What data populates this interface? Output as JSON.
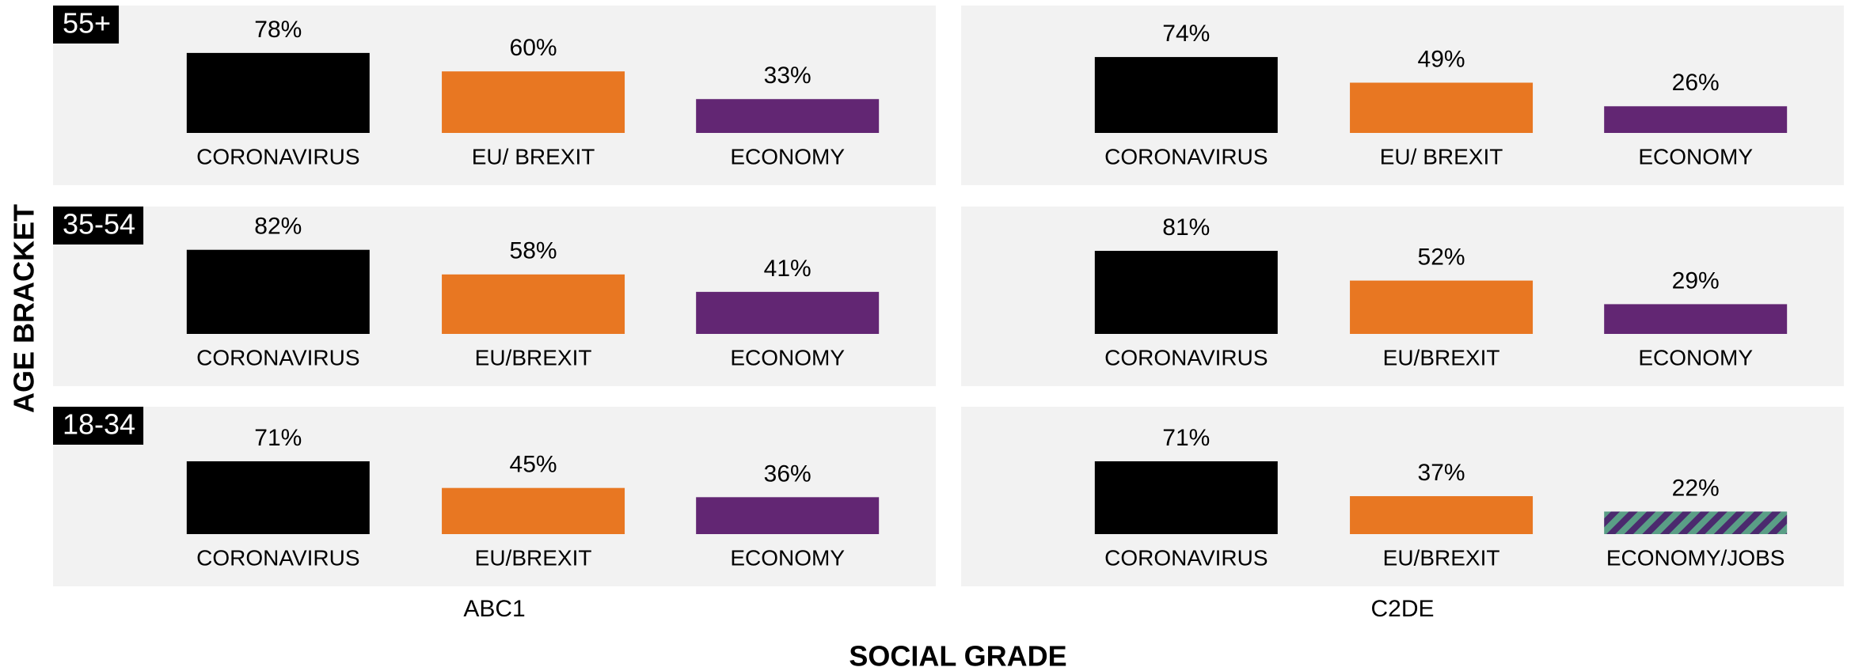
{
  "grid": {
    "x_label": "SOCIAL GRADE",
    "y_label": "AGE BRACKET",
    "columns": [
      "ABC1",
      "C2DE"
    ],
    "rows": [
      "55+",
      "35-54",
      "18-34"
    ]
  },
  "chart_data": [
    {
      "type": "bar",
      "row": 0,
      "column": 0,
      "categories": [
        "CORONAVIRUS",
        "EU/ BREXIT",
        "ECONOMY"
      ],
      "values": [
        78,
        60,
        33
      ],
      "value_labels": [
        "78%",
        "60%",
        "33%"
      ],
      "colors": [
        "#000000",
        "#e87722",
        "#622673"
      ],
      "ylim": [
        0,
        100
      ]
    },
    {
      "type": "bar",
      "row": 0,
      "column": 1,
      "categories": [
        "CORONAVIRUS",
        "EU/ BREXIT",
        "ECONOMY"
      ],
      "values": [
        74,
        49,
        26
      ],
      "value_labels": [
        "74%",
        "49%",
        "26%"
      ],
      "colors": [
        "#000000",
        "#e87722",
        "#622673"
      ],
      "ylim": [
        0,
        100
      ]
    },
    {
      "type": "bar",
      "row": 1,
      "column": 0,
      "categories": [
        "CORONAVIRUS",
        "EU/BREXIT",
        "ECONOMY"
      ],
      "values": [
        82,
        58,
        41
      ],
      "value_labels": [
        "82%",
        "58%",
        "41%"
      ],
      "colors": [
        "#000000",
        "#e87722",
        "#622673"
      ],
      "ylim": [
        0,
        100
      ]
    },
    {
      "type": "bar",
      "row": 1,
      "column": 1,
      "categories": [
        "CORONAVIRUS",
        "EU/BREXIT",
        "ECONOMY"
      ],
      "values": [
        81,
        52,
        29
      ],
      "value_labels": [
        "81%",
        "52%",
        "29%"
      ],
      "colors": [
        "#000000",
        "#e87722",
        "#622673"
      ],
      "ylim": [
        0,
        100
      ]
    },
    {
      "type": "bar",
      "row": 2,
      "column": 0,
      "categories": [
        "CORONAVIRUS",
        "EU/BREXIT",
        "ECONOMY"
      ],
      "values": [
        71,
        45,
        36
      ],
      "value_labels": [
        "71%",
        "45%",
        "36%"
      ],
      "colors": [
        "#000000",
        "#e87722",
        "#622673"
      ],
      "ylim": [
        0,
        100
      ]
    },
    {
      "type": "bar",
      "row": 2,
      "column": 1,
      "categories": [
        "CORONAVIRUS",
        "EU/BREXIT",
        "ECONOMY/JOBS"
      ],
      "values": [
        71,
        37,
        22
      ],
      "value_labels": [
        "71%",
        "37%",
        "22%"
      ],
      "colors": [
        "#000000",
        "#e87722",
        [
          "#5a9e86",
          "#4b2a6e"
        ]
      ],
      "ylim": [
        0,
        100
      ]
    }
  ]
}
